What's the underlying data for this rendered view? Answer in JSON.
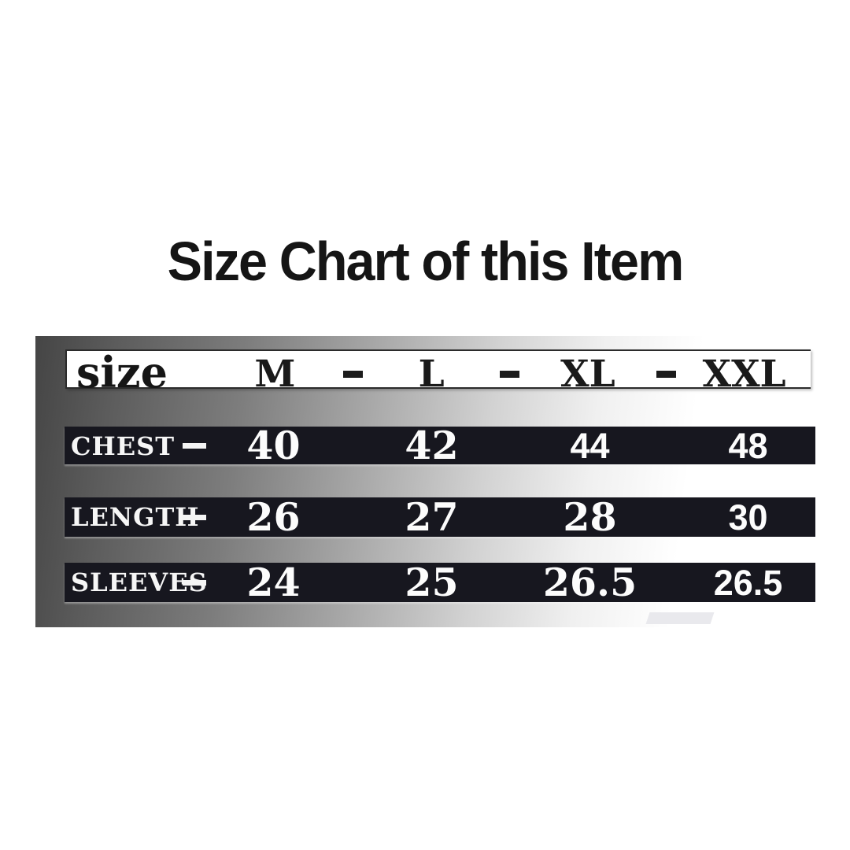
{
  "title": "Size Chart of this Item",
  "table": {
    "header": {
      "label": "size",
      "sizes": [
        "M",
        "L",
        "XL",
        "XXL"
      ]
    },
    "rows": [
      {
        "label": "CHEST",
        "values": [
          "40",
          "42",
          "44",
          "48"
        ]
      },
      {
        "label": "LENGTH",
        "values": [
          "26",
          "27",
          "28",
          "30"
        ]
      },
      {
        "label": "SLEEVES",
        "values": [
          "24",
          "25",
          "26.5",
          "26.5"
        ]
      }
    ]
  },
  "separators": {
    "row_dash": "-",
    "header_dash": "-"
  },
  "chart_data": {
    "type": "table",
    "title": "Size Chart of this Item",
    "columns": [
      "size",
      "M",
      "L",
      "XL",
      "XXL"
    ],
    "rows": [
      {
        "label": "CHEST",
        "M": 40,
        "L": 42,
        "XL": 44,
        "XXL": 48
      },
      {
        "label": "LENGTH",
        "M": 26,
        "L": 27,
        "XL": 28,
        "XXL": 30
      },
      {
        "label": "SLEEVES",
        "M": 24,
        "L": 25,
        "XL": 26.5,
        "XXL": 26.5
      }
    ]
  },
  "colors": {
    "page_background": "#ffffff",
    "title_text": "#151515",
    "band_background": "#17171f",
    "band_text": "#fcfcfc",
    "header_band_background": "#ffffff",
    "header_band_text": "#1a1a1a",
    "panel_gradient_left": "#454545",
    "panel_gradient_right": "#ffffff"
  }
}
